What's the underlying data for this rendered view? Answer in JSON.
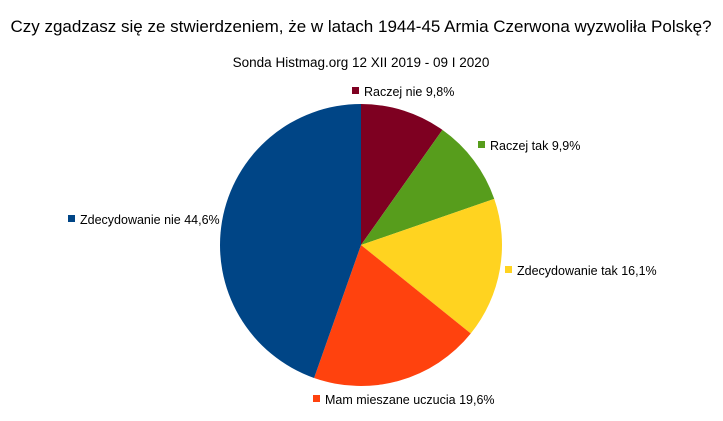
{
  "chart_data": {
    "type": "pie",
    "title": "Czy zgadzasz się ze stwierdzeniem, że w latach 1944-45 Armia Czerwona wyzwoliła Polskę?",
    "subtitle": "Sonda Histmag.org 12 XII 2019 - 09 I 2020",
    "slices": [
      {
        "name": "Raczej nie",
        "value": 9.8,
        "label": "Raczej nie 9,8%",
        "color": "#7e0021"
      },
      {
        "name": "Raczej tak",
        "value": 9.9,
        "label": "Raczej tak 9,9%",
        "color": "#579d1c"
      },
      {
        "name": "Zdecydowanie tak",
        "value": 16.1,
        "label": "Zdecydowanie tak 16,1%",
        "color": "#ffd320"
      },
      {
        "name": "Mam mieszane uczucia",
        "value": 19.6,
        "label": "Mam mieszane uczucia 19,6%",
        "color": "#ff420e"
      },
      {
        "name": "Zdecydowanie nie",
        "value": 44.6,
        "label": "Zdecydowanie nie 44,6%",
        "color": "#004586"
      }
    ],
    "start_angle": "top",
    "direction": "clockwise",
    "legend": "none",
    "labels": "outside"
  }
}
